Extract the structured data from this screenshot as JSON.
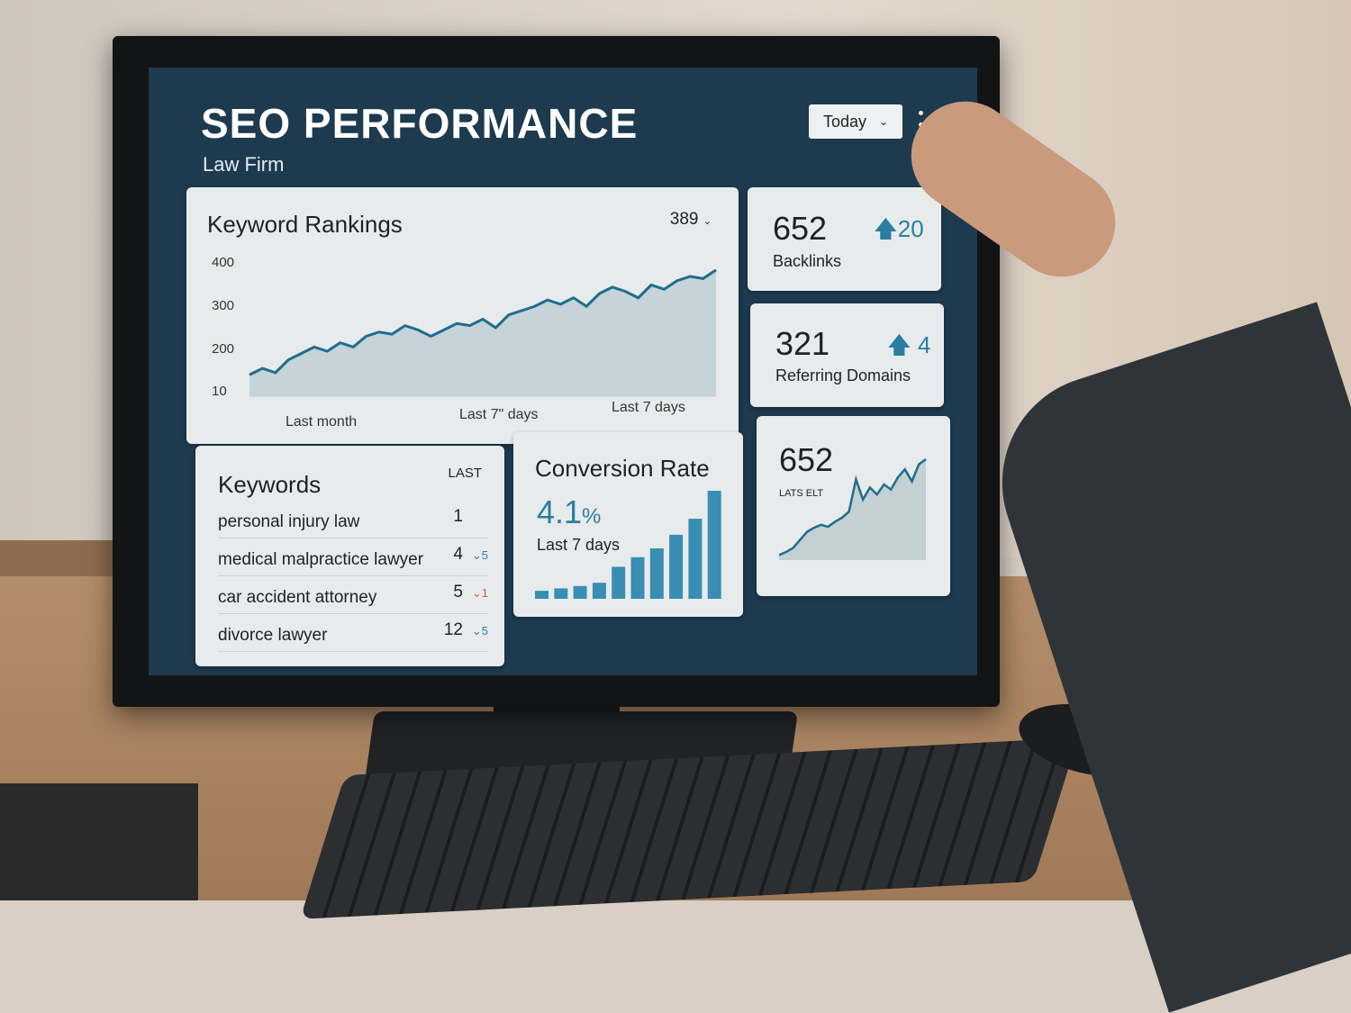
{
  "header": {
    "title": "SEO PERFORMANCE",
    "subtitle": "Law Firm",
    "range_select": "Today",
    "menu_icon": "kebab-icon"
  },
  "colors": {
    "screen_bg": "#1d3a4f",
    "accent": "#2b7ea3",
    "card_bg": "#e8ebec",
    "down": "#c0652e"
  },
  "keyword_rankings": {
    "title": "Keyword Rankings",
    "value": "389",
    "chart_data": {
      "type": "area",
      "y_ticks": [
        "400",
        "300",
        "200",
        "10"
      ],
      "x_labels": [
        "Last month",
        "Last 7\" days",
        "Last 7 days"
      ],
      "values": [
        150,
        165,
        155,
        185,
        200,
        215,
        205,
        225,
        215,
        240,
        250,
        245,
        265,
        255,
        240,
        255,
        270,
        265,
        280,
        260,
        290,
        300,
        310,
        325,
        315,
        330,
        310,
        340,
        355,
        345,
        330,
        360,
        350,
        370,
        380,
        375,
        395
      ]
    }
  },
  "backlinks": {
    "value": "652",
    "label": "Backlinks",
    "delta": "20"
  },
  "referring_domains": {
    "value": "321",
    "label": "Referring Domains",
    "delta": "4"
  },
  "keywords": {
    "title": "Keywords",
    "column": "LAST",
    "rows": [
      {
        "keyword": "personal injury law",
        "rank": "1",
        "change": ""
      },
      {
        "keyword": "medical malpractice lawyer",
        "rank": "4",
        "change": "5",
        "dir": "up"
      },
      {
        "keyword": "car accident attorney",
        "rank": "5",
        "change": "1",
        "dir": "down"
      },
      {
        "keyword": "divorce lawyer",
        "rank": "12",
        "change": "5",
        "dir": "up"
      }
    ]
  },
  "conversion": {
    "title": "Conversion Rate",
    "value": "4.1",
    "unit": "%",
    "period": "Last 7 days",
    "chart_data": {
      "type": "bar",
      "values": [
        1,
        1.3,
        1.6,
        2,
        4,
        5.2,
        6.3,
        8,
        10,
        13.5
      ]
    }
  },
  "mini": {
    "value": "652",
    "label": "LATS ELT",
    "chart_data": {
      "type": "area",
      "values": [
        5,
        8,
        12,
        20,
        28,
        32,
        35,
        33,
        38,
        42,
        48,
        80,
        60,
        72,
        65,
        75,
        70,
        82,
        90,
        78,
        95,
        100
      ]
    }
  }
}
